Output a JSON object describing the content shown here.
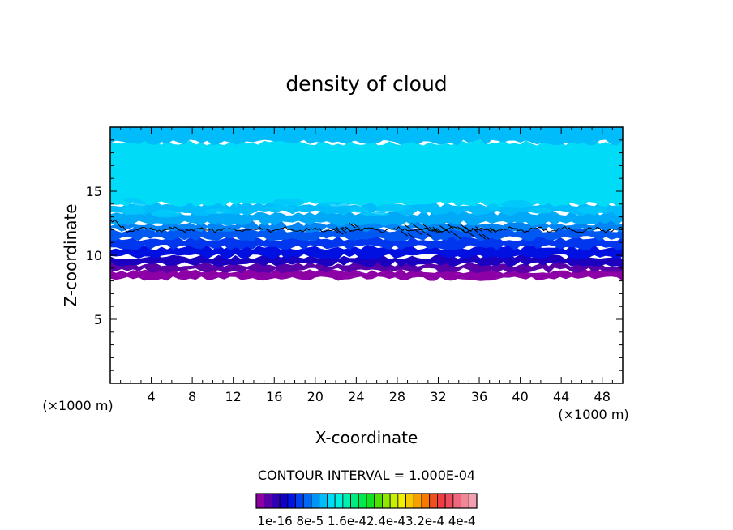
{
  "chart_data": {
    "type": "heatmap",
    "title": "density of cloud",
    "xlabel": "X-coordinate",
    "ylabel": "Z-coordinate",
    "x_unit": "(×1000 m)",
    "y_unit": "(×1000 m)",
    "xlim": [
      0,
      50
    ],
    "ylim": [
      0,
      20
    ],
    "x_ticks": [
      4,
      8,
      12,
      16,
      20,
      24,
      28,
      32,
      36,
      40,
      44,
      48
    ],
    "y_ticks": [
      5,
      10,
      15
    ],
    "contour_interval_text": "CONTOUR INTERVAL = 1.000E-04",
    "colorbar": {
      "colors": [
        "#8c00a6",
        "#5a00a8",
        "#3200b4",
        "#1000cc",
        "#0014e6",
        "#0040f0",
        "#0068f4",
        "#0094f8",
        "#00bcfa",
        "#00dcf8",
        "#00f0e0",
        "#00f0b0",
        "#00ec80",
        "#00e850",
        "#10e020",
        "#50e000",
        "#90e800",
        "#c8f000",
        "#f0f000",
        "#f8c800",
        "#f8a000",
        "#f87800",
        "#f05020",
        "#f03c40",
        "#f04c60",
        "#f06880",
        "#f08898",
        "#f0a0b0"
      ],
      "labels": [
        "1e-16",
        "8e-5",
        "1.6e-4",
        "2.4e-4",
        "3.2e-4",
        "4e-4"
      ],
      "label_text": "1e-16 8e-5 1.6e-42.4e-43.2e-4 4e-4"
    },
    "field_bands": [
      {
        "z_bottom": 8.1,
        "z_top": 8.8,
        "color": "#8c00a6"
      },
      {
        "z_bottom": 8.8,
        "z_top": 9.3,
        "color": "#5a00a8"
      },
      {
        "z_bottom": 9.3,
        "z_top": 9.9,
        "color": "#1c00c0"
      },
      {
        "z_bottom": 9.9,
        "z_top": 10.6,
        "color": "#0010e0"
      },
      {
        "z_bottom": 10.6,
        "z_top": 11.3,
        "color": "#0036ee"
      },
      {
        "z_bottom": 11.3,
        "z_top": 12.0,
        "color": "#0058f2"
      },
      {
        "z_bottom": 12.0,
        "z_top": 12.5,
        "color": "#0084f6"
      },
      {
        "z_bottom": 12.5,
        "z_top": 13.3,
        "color": "#00a8f8"
      },
      {
        "z_bottom": 13.3,
        "z_top": 14.0,
        "color": "#00bcfa"
      },
      {
        "z_bottom": 14.0,
        "z_top": 18.8,
        "color": "#00dcf8"
      },
      {
        "z_bottom": 18.8,
        "z_top": 20.0,
        "color": "#00bcfa"
      }
    ],
    "contour_line": {
      "z_level": 12.0,
      "color": "#000000"
    }
  }
}
